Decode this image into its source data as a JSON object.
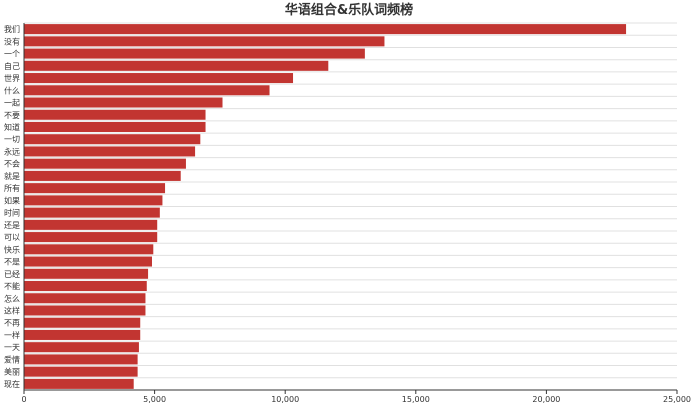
{
  "chart_data": {
    "type": "bar",
    "orientation": "horizontal",
    "title": "华语组合&乐队词频榜",
    "categories": [
      "我们",
      "没有",
      "一个",
      "自己",
      "世界",
      "什么",
      "一起",
      "不要",
      "知道",
      "一切",
      "永远",
      "不会",
      "就是",
      "所有",
      "如果",
      "时间",
      "还是",
      "可以",
      "快乐",
      "不是",
      "已经",
      "不能",
      "怎么",
      "这样",
      "不再",
      "一样",
      "一天",
      "爱情",
      "美丽",
      "现在"
    ],
    "values": [
      23050,
      13800,
      13050,
      11650,
      10300,
      9400,
      7600,
      6950,
      6950,
      6750,
      6550,
      6200,
      6000,
      5400,
      5300,
      5200,
      5100,
      5100,
      4950,
      4900,
      4750,
      4700,
      4650,
      4650,
      4450,
      4450,
      4400,
      4350,
      4350,
      4200
    ],
    "xlim": [
      0,
      25000
    ],
    "x_ticks": [
      0,
      5000,
      10000,
      15000,
      20000,
      25000
    ],
    "x_tick_labels": [
      "0",
      "5,000",
      "10,000",
      "15,000",
      "20,000",
      "25,000"
    ],
    "grid": "horizontal row separators",
    "colors": {
      "bar": "#c23531",
      "grid": "#e0e0e0",
      "axis": "#333333"
    }
  }
}
